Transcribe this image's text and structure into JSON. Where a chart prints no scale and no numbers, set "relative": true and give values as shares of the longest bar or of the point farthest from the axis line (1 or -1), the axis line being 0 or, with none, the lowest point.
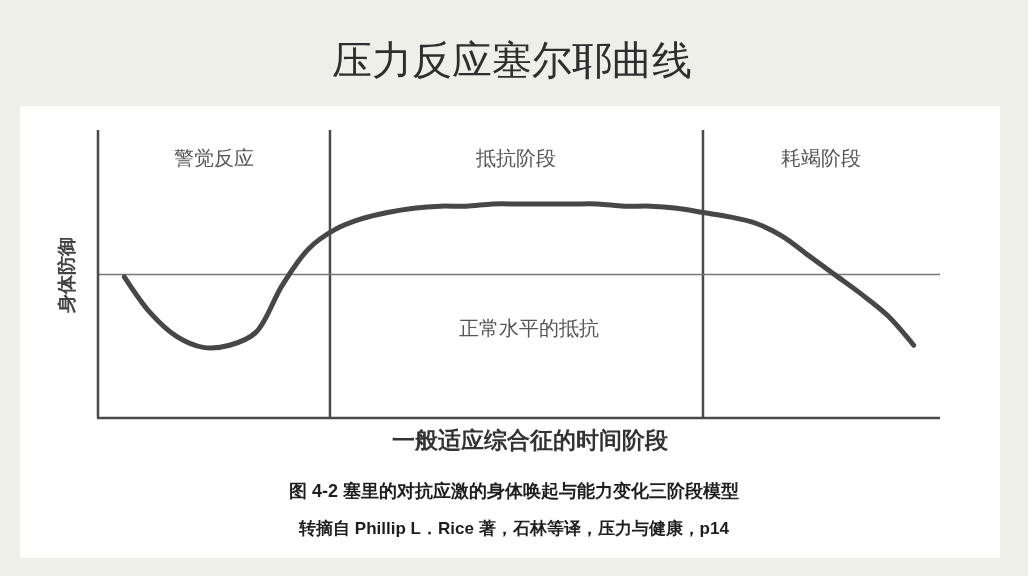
{
  "chart_data": {
    "type": "line",
    "title": "压力反应塞尔耶曲线",
    "xlabel": "一般适应综合征的时间阶段",
    "ylabel": "身体防御",
    "relative": true,
    "marker": "none",
    "line_style": "solid",
    "categories": [
      null,
      null,
      null,
      null,
      null,
      null,
      null,
      null,
      null,
      null,
      null,
      null,
      null,
      null,
      null,
      null,
      null,
      null,
      null,
      null,
      null,
      null,
      null,
      null,
      null,
      null,
      null,
      null,
      null,
      null,
      null
    ],
    "series": [
      {
        "color": "#474747",
        "values": [
          0.66,
          0.49,
          0.38,
          0.33,
          0.34,
          0.4,
          0.62,
          0.79,
          0.88,
          0.93,
          0.96,
          0.98,
          0.99,
          0.99,
          1.0,
          1.0,
          1.0,
          1.0,
          1.0,
          0.99,
          0.99,
          0.98,
          0.96,
          0.94,
          0.91,
          0.85,
          0.76,
          0.67,
          0.58,
          0.48,
          0.34
        ]
      }
    ],
    "ref_lines": [
      {
        "axis": "y",
        "value": 0.67,
        "label": "正常水平的抵抗",
        "color": "#777777"
      }
    ],
    "annotations": [
      "警觉反应",
      "抵抗阶段",
      "耗竭阶段",
      "图 4-2 塞里的对抗应激的身体唤起与能力变化三阶段模型",
      "转摘自 Phillip L．Rice 著，石林等译，压力与健康，p14"
    ]
  }
}
